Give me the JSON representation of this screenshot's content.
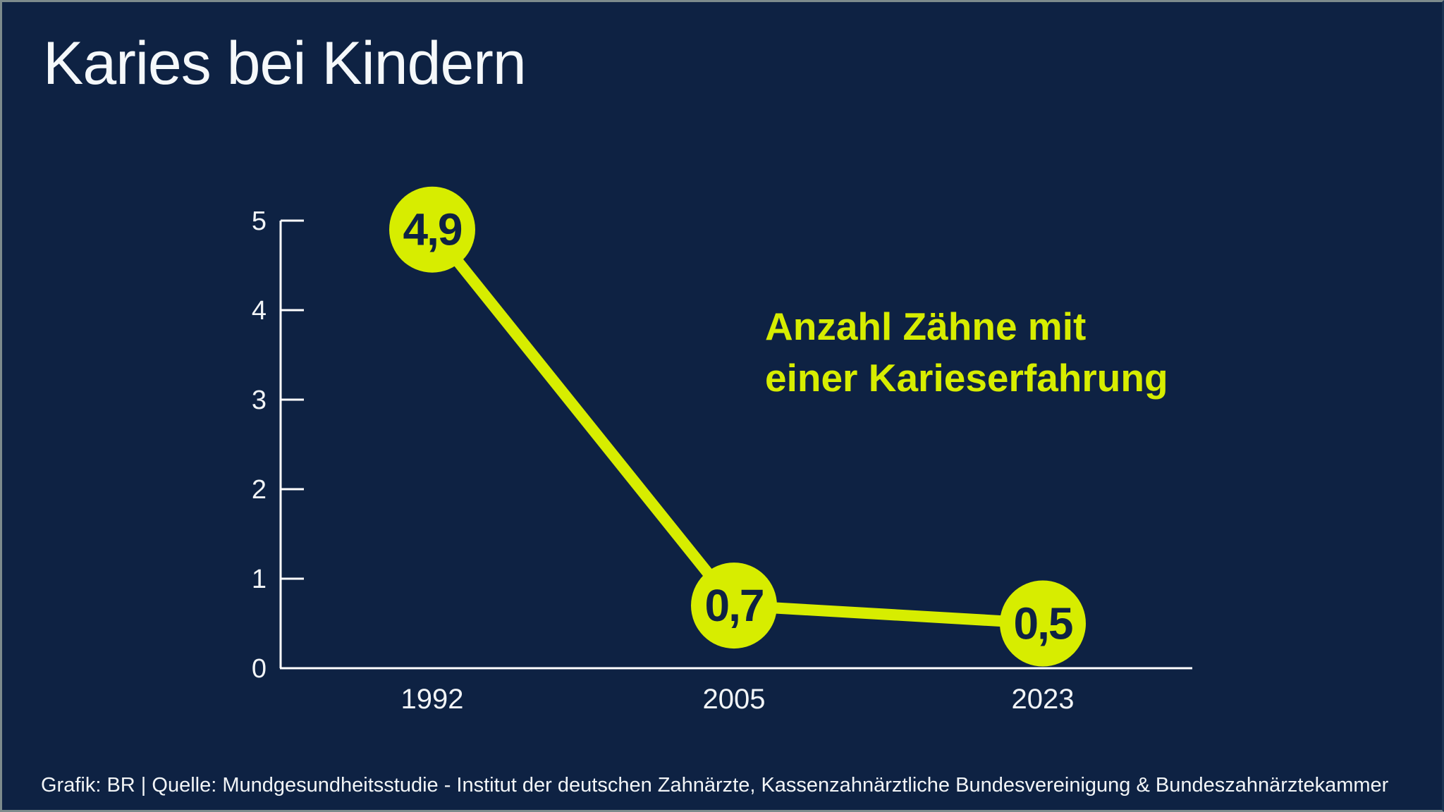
{
  "page": {
    "title": "Karies bei Kindern",
    "source_line": "Grafik: BR | Quelle: Mundgesundheitsstudie - Institut der deutschen Zahnärzte, Kassenzahnärztliche Bundesvereinigung & Bundeszahnärztekammer"
  },
  "annotation": {
    "lines": [
      "Anzahl Zähne mit",
      "einer Karieserfahrung"
    ]
  },
  "colors": {
    "background": "#0e2243",
    "accent_lime": "#d7ed00",
    "text_white": "#f2f5f7",
    "axis": "#ffffff",
    "marker_label": "#0e2243"
  },
  "chart_data": {
    "type": "line",
    "title": "Karies bei Kindern",
    "categories": [
      "1992",
      "2005",
      "2023"
    ],
    "values": [
      4.9,
      0.7,
      0.5
    ],
    "point_labels": [
      "4,9",
      "0,7",
      "0,5"
    ],
    "annotation": "Anzahl Zähne mit einer Karieserfahrung",
    "xlabel": "",
    "ylabel": "",
    "ylim": [
      0,
      5
    ],
    "yticks": [
      0,
      1,
      2,
      3,
      4,
      5
    ],
    "grid": false,
    "legend": "none",
    "line_color": "#d7ed00",
    "marker_color": "#d7ed00",
    "marker_label_color": "#0e2243"
  }
}
